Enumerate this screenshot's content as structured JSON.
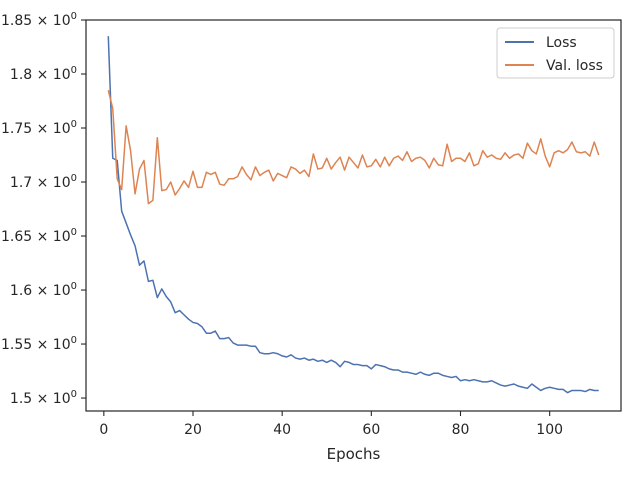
{
  "chart_data": {
    "type": "line",
    "title": "",
    "xlabel": "Epochs",
    "ylabel": "",
    "xlim": [
      -4,
      116
    ],
    "ylim": [
      1.488,
      1.85
    ],
    "grid": false,
    "legend_position": "top-right",
    "x_ticks": [
      0,
      20,
      40,
      60,
      80,
      100
    ],
    "x_tick_labels": [
      "0",
      "20",
      "40",
      "60",
      "80",
      "100"
    ],
    "y_ticks": [
      1.5,
      1.55,
      1.6,
      1.65,
      1.7,
      1.75,
      1.8,
      1.85
    ],
    "y_tick_labels": [
      {
        "base": "1.5 × 10",
        "exp": "0"
      },
      {
        "base": "1.55 × 10",
        "exp": "0"
      },
      {
        "base": "1.6 × 10",
        "exp": "0"
      },
      {
        "base": "1.65 × 10",
        "exp": "0"
      },
      {
        "base": "1.7 × 10",
        "exp": "0"
      },
      {
        "base": "1.75 × 10",
        "exp": "0"
      },
      {
        "base": "1.8 × 10",
        "exp": "0"
      },
      {
        "base": "1.85 × 10",
        "exp": "0"
      }
    ],
    "x": [
      1,
      2,
      3,
      4,
      5,
      6,
      7,
      8,
      9,
      10,
      11,
      12,
      13,
      14,
      15,
      16,
      17,
      18,
      19,
      20,
      21,
      22,
      23,
      24,
      25,
      26,
      27,
      28,
      29,
      30,
      31,
      32,
      33,
      34,
      35,
      36,
      37,
      38,
      39,
      40,
      41,
      42,
      43,
      44,
      45,
      46,
      47,
      48,
      49,
      50,
      51,
      52,
      53,
      54,
      55,
      56,
      57,
      58,
      59,
      60,
      61,
      62,
      63,
      64,
      65,
      66,
      67,
      68,
      69,
      70,
      71,
      72,
      73,
      74,
      75,
      76,
      77,
      78,
      79,
      80,
      81,
      82,
      83,
      84,
      85,
      86,
      87,
      88,
      89,
      90,
      91,
      92,
      93,
      94,
      95,
      96,
      97,
      98,
      99,
      100,
      101,
      102,
      103,
      104,
      105,
      106,
      107,
      108,
      109,
      110,
      111
    ],
    "series": [
      {
        "name": "Loss",
        "color": "#4c72b0",
        "values": [
          1.835,
          1.722,
          1.72,
          1.673,
          1.662,
          1.651,
          1.641,
          1.623,
          1.627,
          1.608,
          1.609,
          1.593,
          1.601,
          1.594,
          1.589,
          1.579,
          1.581,
          1.577,
          1.573,
          1.57,
          1.569,
          1.566,
          1.56,
          1.56,
          1.562,
          1.555,
          1.555,
          1.556,
          1.551,
          1.549,
          1.549,
          1.549,
          1.548,
          1.548,
          1.542,
          1.541,
          1.541,
          1.542,
          1.541,
          1.539,
          1.538,
          1.54,
          1.537,
          1.536,
          1.537,
          1.535,
          1.536,
          1.534,
          1.535,
          1.533,
          1.535,
          1.533,
          1.529,
          1.534,
          1.533,
          1.531,
          1.531,
          1.53,
          1.53,
          1.527,
          1.531,
          1.53,
          1.529,
          1.527,
          1.526,
          1.526,
          1.524,
          1.524,
          1.523,
          1.522,
          1.524,
          1.522,
          1.521,
          1.523,
          1.523,
          1.521,
          1.52,
          1.519,
          1.52,
          1.516,
          1.517,
          1.516,
          1.517,
          1.516,
          1.515,
          1.515,
          1.516,
          1.514,
          1.512,
          1.511,
          1.512,
          1.513,
          1.511,
          1.51,
          1.509,
          1.513,
          1.51,
          1.507,
          1.509,
          1.51,
          1.509,
          1.508,
          1.508,
          1.505,
          1.507,
          1.507,
          1.507,
          1.506,
          1.508,
          1.507,
          1.507
        ]
      },
      {
        "name": "Val. loss",
        "color": "#dd8452",
        "values": [
          1.785,
          1.768,
          1.703,
          1.693,
          1.752,
          1.729,
          1.689,
          1.712,
          1.72,
          1.68,
          1.683,
          1.741,
          1.692,
          1.693,
          1.7,
          1.688,
          1.694,
          1.701,
          1.695,
          1.71,
          1.695,
          1.695,
          1.709,
          1.707,
          1.709,
          1.698,
          1.697,
          1.703,
          1.703,
          1.705,
          1.714,
          1.707,
          1.702,
          1.714,
          1.706,
          1.709,
          1.711,
          1.701,
          1.708,
          1.706,
          1.704,
          1.714,
          1.712,
          1.708,
          1.711,
          1.705,
          1.726,
          1.712,
          1.713,
          1.722,
          1.712,
          1.718,
          1.723,
          1.711,
          1.723,
          1.718,
          1.713,
          1.725,
          1.714,
          1.715,
          1.721,
          1.714,
          1.723,
          1.715,
          1.722,
          1.724,
          1.72,
          1.728,
          1.719,
          1.722,
          1.723,
          1.72,
          1.713,
          1.722,
          1.716,
          1.715,
          1.735,
          1.719,
          1.722,
          1.722,
          1.719,
          1.727,
          1.715,
          1.717,
          1.729,
          1.723,
          1.725,
          1.722,
          1.721,
          1.727,
          1.722,
          1.725,
          1.726,
          1.722,
          1.736,
          1.729,
          1.726,
          1.74,
          1.724,
          1.714,
          1.727,
          1.729,
          1.727,
          1.73,
          1.737,
          1.728,
          1.727,
          1.728,
          1.724,
          1.737,
          1.725
        ]
      }
    ]
  }
}
